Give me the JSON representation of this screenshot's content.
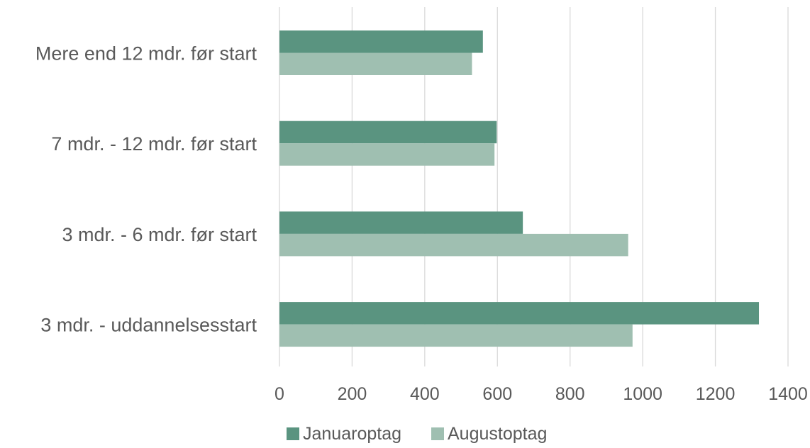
{
  "chart_data": {
    "type": "bar",
    "orientation": "horizontal",
    "categories": [
      "Mere end 12 mdr. før start",
      "7 mdr. - 12 mdr. før start",
      "3 mdr. - 6 mdr. før start",
      "3 mdr. - uddannelsesstart"
    ],
    "series": [
      {
        "name": "Januaroptag",
        "color": "#5a9480",
        "values": [
          560,
          598,
          670,
          1320
        ]
      },
      {
        "name": "Augustoptag",
        "color": "#9fbfb1",
        "values": [
          530,
          592,
          960,
          972
        ]
      }
    ],
    "xlim": [
      0,
      1400
    ],
    "xticks": [
      "0",
      "200",
      "400",
      "600",
      "800",
      "1000",
      "1200",
      "1400"
    ],
    "grid": true,
    "legend": "bottom",
    "title": "",
    "xlabel": "",
    "ylabel": ""
  }
}
